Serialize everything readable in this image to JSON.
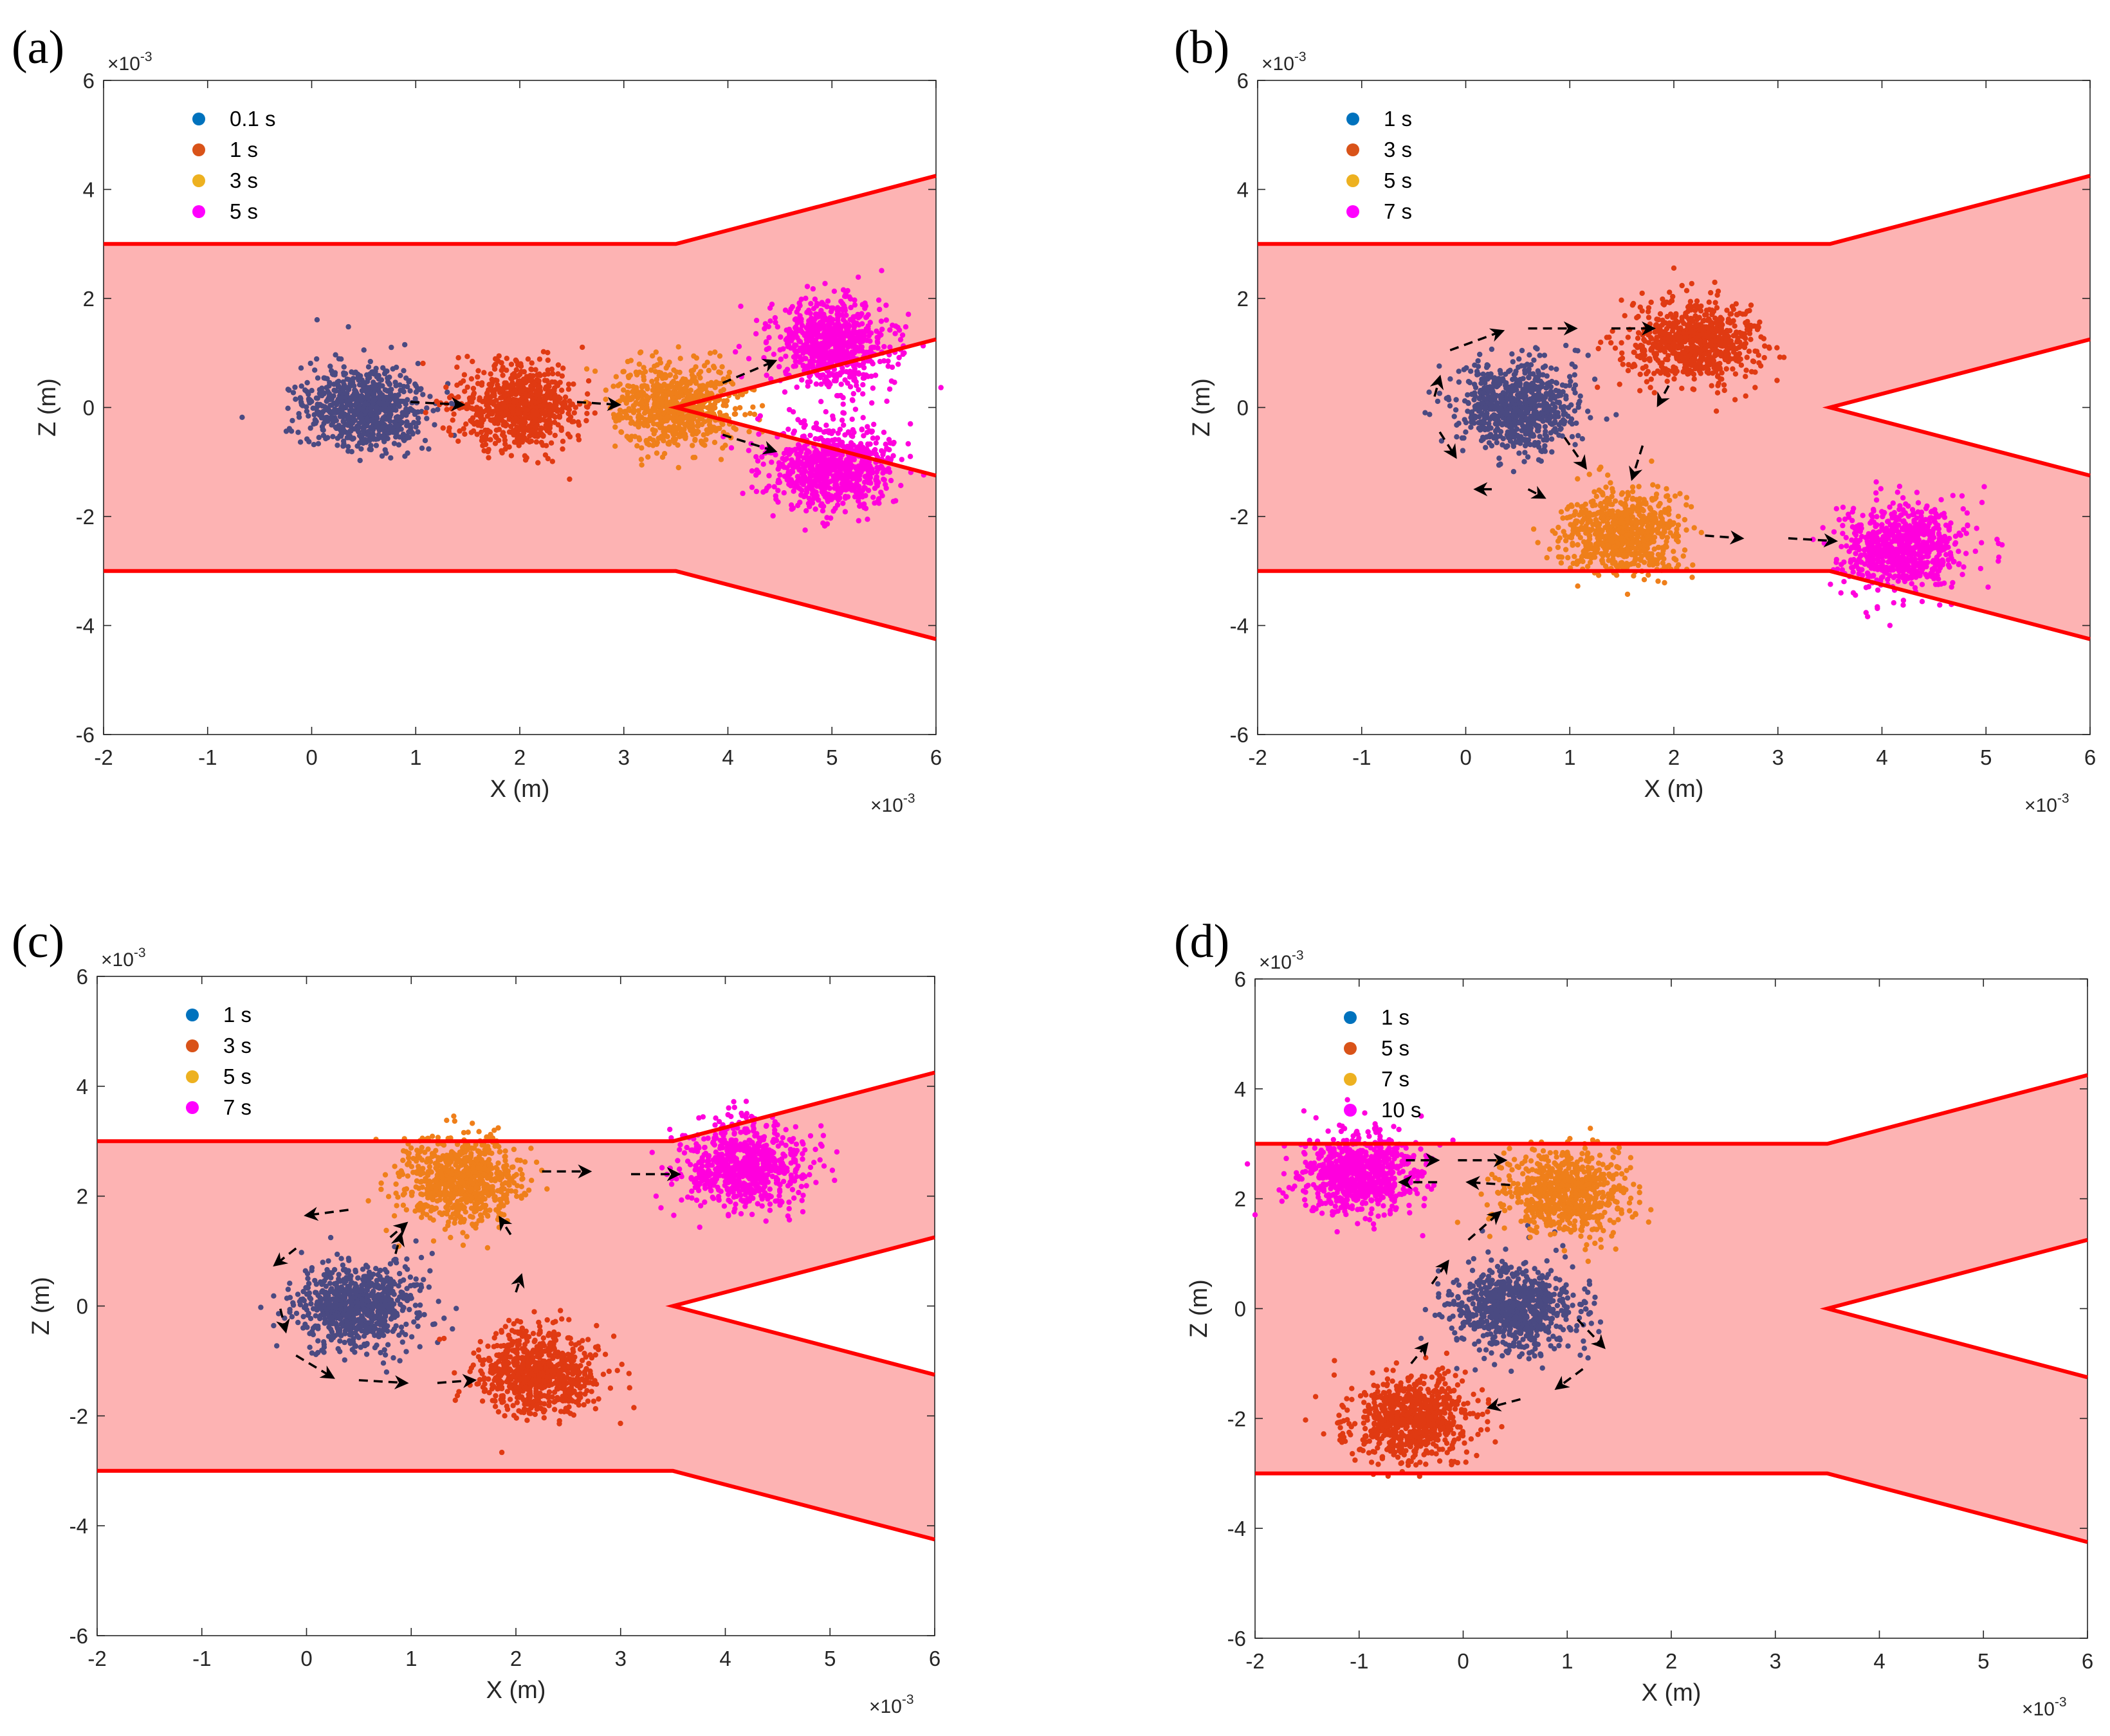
{
  "colors": {
    "channel_fill": "#fdb3b3",
    "channel_wall": "#ff0000",
    "arrow": "#000000",
    "cluster_initial": "#4a4a82",
    "cluster_2": "#e03a12",
    "cluster_3": "#ef7f1a",
    "cluster_4": "#ff00dd",
    "legend_1": "#0072bd",
    "legend_2": "#d95319",
    "legend_3": "#edb120",
    "legend_4": "#ff00ff"
  },
  "chart_data": [
    {
      "type": "scatter",
      "panel_label": "(a)",
      "xlabel": "X (m)",
      "ylabel": "Z (m)",
      "xlim": [
        -2,
        6
      ],
      "ylim": [
        -6,
        6
      ],
      "x_scale_exponent": "×10",
      "x_scale_power": "-3",
      "y_scale_exponent": "×10",
      "y_scale_power": "-3",
      "xticks": [
        "-2",
        "-1",
        "0",
        "1",
        "2",
        "3",
        "4",
        "5",
        "6"
      ],
      "yticks": [
        "-6",
        "-4",
        "-2",
        "0",
        "2",
        "4",
        "6"
      ],
      "legend_position": "top-left",
      "channel": {
        "outline_top": [
          [
            -2,
            3
          ],
          [
            3.5,
            3
          ],
          [
            6,
            4.25
          ]
        ],
        "outline_bottom": [
          [
            -2,
            -3
          ],
          [
            3.5,
            -3
          ],
          [
            6,
            -4.25
          ]
        ],
        "inner_branch": [
          [
            6,
            1.25
          ],
          [
            3.5,
            0
          ],
          [
            6,
            -1.25
          ]
        ]
      },
      "series": [
        {
          "name": "0.1 s",
          "color_key": "cluster_initial",
          "legend_color_key": "legend_1",
          "clusters": [
            {
              "x": 0.5,
              "z": 0.0
            }
          ]
        },
        {
          "name": "1 s",
          "color_key": "cluster_2",
          "legend_color_key": "legend_2",
          "clusters": [
            {
              "x": 2.0,
              "z": 0.0
            }
          ]
        },
        {
          "name": "3 s",
          "color_key": "cluster_3",
          "legend_color_key": "legend_3",
          "clusters": [
            {
              "x": 3.5,
              "z": 0.0
            }
          ]
        },
        {
          "name": "5 s",
          "color_key": "cluster_4",
          "legend_color_key": "legend_4",
          "clusters": [
            {
              "x": 5.0,
              "z": 1.2
            },
            {
              "x": 5.0,
              "z": -1.1
            }
          ]
        }
      ],
      "arrows": [
        {
          "from": [
            0.95,
            0.1
          ],
          "to": [
            1.45,
            0.05
          ]
        },
        {
          "from": [
            2.55,
            0.1
          ],
          "to": [
            2.95,
            0.05
          ]
        },
        {
          "from": [
            3.95,
            0.45
          ],
          "to": [
            4.45,
            0.85
          ]
        },
        {
          "from": [
            3.95,
            -0.5
          ],
          "to": [
            4.45,
            -0.8
          ]
        }
      ]
    },
    {
      "type": "scatter",
      "panel_label": "(b)",
      "xlabel": "X (m)",
      "ylabel": "Z (m)",
      "xlim": [
        -2,
        6
      ],
      "ylim": [
        -6,
        6
      ],
      "x_scale_exponent": "×10",
      "x_scale_power": "-3",
      "y_scale_exponent": "×10",
      "y_scale_power": "-3",
      "xticks": [
        "-2",
        "-1",
        "0",
        "1",
        "2",
        "3",
        "4",
        "5",
        "6"
      ],
      "yticks": [
        "-6",
        "-4",
        "-2",
        "0",
        "2",
        "4",
        "6"
      ],
      "legend_position": "top-left",
      "channel": {
        "outline_top": [
          [
            -2,
            3
          ],
          [
            3.5,
            3
          ],
          [
            6,
            4.25
          ]
        ],
        "outline_bottom": [
          [
            -2,
            -3
          ],
          [
            3.5,
            -3
          ],
          [
            6,
            -4.25
          ]
        ],
        "inner_branch": [
          [
            6,
            1.25
          ],
          [
            3.5,
            0
          ],
          [
            6,
            -1.25
          ]
        ]
      },
      "series": [
        {
          "name": "1 s",
          "color_key": "cluster_initial",
          "legend_color_key": "legend_1",
          "clusters": [
            {
              "x": 0.5,
              "z": 0.0
            }
          ]
        },
        {
          "name": "3 s",
          "color_key": "cluster_2",
          "legend_color_key": "legend_2",
          "clusters": [
            {
              "x": 2.2,
              "z": 1.2
            }
          ]
        },
        {
          "name": "5 s",
          "color_key": "cluster_3",
          "legend_color_key": "legend_3",
          "clusters": [
            {
              "x": 1.5,
              "z": -2.3
            }
          ]
        },
        {
          "name": "7 s",
          "color_key": "cluster_4",
          "legend_color_key": "legend_4",
          "clusters": [
            {
              "x": 4.2,
              "z": -2.55
            }
          ]
        }
      ],
      "arrows": [
        {
          "from": [
            -0.3,
            0.2
          ],
          "to": [
            -0.25,
            0.55
          ]
        },
        {
          "from": [
            -0.15,
            1.05
          ],
          "to": [
            0.35,
            1.4
          ]
        },
        {
          "from": [
            0.6,
            1.45
          ],
          "to": [
            1.05,
            1.45
          ]
        },
        {
          "from": [
            1.4,
            1.45
          ],
          "to": [
            1.8,
            1.45
          ]
        },
        {
          "from": [
            -0.25,
            -0.45
          ],
          "to": [
            -0.1,
            -0.9
          ]
        },
        {
          "from": [
            0.25,
            -1.5
          ],
          "to": [
            0.1,
            -1.5
          ]
        },
        {
          "from": [
            0.6,
            -1.5
          ],
          "to": [
            0.75,
            -1.65
          ]
        },
        {
          "from": [
            0.95,
            -0.55
          ],
          "to": [
            1.15,
            -1.1
          ]
        },
        {
          "from": [
            1.95,
            0.4
          ],
          "to": [
            1.85,
            0.05
          ]
        },
        {
          "from": [
            1.7,
            -0.7
          ],
          "to": [
            1.6,
            -1.3
          ]
        },
        {
          "from": [
            2.3,
            -2.35
          ],
          "to": [
            2.65,
            -2.4
          ]
        },
        {
          "from": [
            3.1,
            -2.4
          ],
          "to": [
            3.55,
            -2.45
          ]
        }
      ]
    },
    {
      "type": "scatter",
      "panel_label": "(c)",
      "xlabel": "X (m)",
      "ylabel": "Z (m)",
      "xlim": [
        -2,
        6
      ],
      "ylim": [
        -6,
        6
      ],
      "x_scale_exponent": "×10",
      "x_scale_power": "-3",
      "y_scale_exponent": "×10",
      "y_scale_power": "-3",
      "xticks": [
        "-2",
        "-1",
        "0",
        "1",
        "2",
        "3",
        "4",
        "5",
        "6"
      ],
      "yticks": [
        "-6",
        "-4",
        "-2",
        "0",
        "2",
        "4",
        "6"
      ],
      "legend_position": "top-left",
      "channel": {
        "outline_top": [
          [
            -2,
            3
          ],
          [
            3.5,
            3
          ],
          [
            6,
            4.25
          ]
        ],
        "outline_bottom": [
          [
            -2,
            -3
          ],
          [
            3.5,
            -3
          ],
          [
            6,
            -4.25
          ]
        ],
        "inner_branch": [
          [
            6,
            1.25
          ],
          [
            3.5,
            0
          ],
          [
            6,
            -1.25
          ]
        ]
      },
      "series": [
        {
          "name": "1 s",
          "color_key": "cluster_initial",
          "legend_color_key": "legend_1",
          "clusters": [
            {
              "x": 0.5,
              "z": 0.0
            }
          ]
        },
        {
          "name": "3 s",
          "color_key": "cluster_2",
          "legend_color_key": "legend_2",
          "clusters": [
            {
              "x": 2.2,
              "z": -1.2
            }
          ]
        },
        {
          "name": "5 s",
          "color_key": "cluster_3",
          "legend_color_key": "legend_3",
          "clusters": [
            {
              "x": 1.5,
              "z": 2.3
            }
          ]
        },
        {
          "name": "7 s",
          "color_key": "cluster_4",
          "legend_color_key": "legend_4",
          "clusters": [
            {
              "x": 4.2,
              "z": 2.55
            }
          ]
        }
      ],
      "arrows": [
        {
          "from": [
            -0.25,
            -0.05
          ],
          "to": [
            -0.2,
            -0.45
          ]
        },
        {
          "from": [
            -0.1,
            -0.9
          ],
          "to": [
            0.25,
            -1.3
          ]
        },
        {
          "from": [
            0.5,
            -1.35
          ],
          "to": [
            0.95,
            -1.4
          ]
        },
        {
          "from": [
            1.25,
            -1.4
          ],
          "to": [
            1.6,
            -1.35
          ]
        },
        {
          "from": [
            -0.1,
            1.05
          ],
          "to": [
            -0.3,
            0.75
          ]
        },
        {
          "from": [
            0.4,
            1.75
          ],
          "to": [
            0.0,
            1.65
          ]
        },
        {
          "from": [
            0.8,
            1.25
          ],
          "to": [
            0.95,
            1.5
          ]
        },
        {
          "from": [
            0.85,
            0.95
          ],
          "to": [
            0.9,
            1.3
          ]
        },
        {
          "from": [
            2.0,
            0.25
          ],
          "to": [
            2.05,
            0.55
          ]
        },
        {
          "from": [
            1.95,
            1.3
          ],
          "to": [
            1.85,
            1.6
          ]
        },
        {
          "from": [
            2.25,
            2.45
          ],
          "to": [
            2.7,
            2.45
          ]
        },
        {
          "from": [
            3.1,
            2.4
          ],
          "to": [
            3.55,
            2.4
          ]
        }
      ]
    },
    {
      "type": "scatter",
      "panel_label": "(d)",
      "xlabel": "X (m)",
      "ylabel": "Z (m)",
      "xlim": [
        -2,
        6
      ],
      "ylim": [
        -6,
        6
      ],
      "x_scale_exponent": "×10",
      "x_scale_power": "-3",
      "y_scale_exponent": "×10",
      "y_scale_power": "-3",
      "xticks": [
        "-2",
        "-1",
        "0",
        "1",
        "2",
        "3",
        "4",
        "5",
        "6"
      ],
      "yticks": [
        "-6",
        "-4",
        "-2",
        "0",
        "2",
        "4",
        "6"
      ],
      "legend_position": "top-left",
      "channel": {
        "outline_top": [
          [
            -2,
            3
          ],
          [
            3.5,
            3
          ],
          [
            6,
            4.25
          ]
        ],
        "outline_bottom": [
          [
            -2,
            -3
          ],
          [
            3.5,
            -3
          ],
          [
            6,
            -4.25
          ]
        ],
        "inner_branch": [
          [
            6,
            1.25
          ],
          [
            3.5,
            0
          ],
          [
            6,
            -1.25
          ]
        ]
      },
      "series": [
        {
          "name": "1 s",
          "color_key": "cluster_initial",
          "legend_color_key": "legend_1",
          "clusters": [
            {
              "x": 0.5,
              "z": 0.0
            }
          ]
        },
        {
          "name": "5 s",
          "color_key": "cluster_2",
          "legend_color_key": "legend_2",
          "clusters": [
            {
              "x": -0.5,
              "z": -2.0
            }
          ]
        },
        {
          "name": "7 s",
          "color_key": "cluster_3",
          "legend_color_key": "legend_3",
          "clusters": [
            {
              "x": 1.0,
              "z": 2.1
            }
          ]
        },
        {
          "name": "10 s",
          "color_key": "cluster_4",
          "legend_color_key": "legend_4",
          "clusters": [
            {
              "x": -1.0,
              "z": 2.5
            }
          ]
        }
      ],
      "arrows": [
        {
          "from": [
            1.1,
            -0.2
          ],
          "to": [
            1.35,
            -0.7
          ]
        },
        {
          "from": [
            1.15,
            -1.1
          ],
          "to": [
            0.9,
            -1.45
          ]
        },
        {
          "from": [
            0.55,
            -1.65
          ],
          "to": [
            0.25,
            -1.8
          ]
        },
        {
          "from": [
            -0.5,
            -1.0
          ],
          "to": [
            -0.35,
            -0.65
          ]
        },
        {
          "from": [
            -0.3,
            0.45
          ],
          "to": [
            -0.15,
            0.85
          ]
        },
        {
          "from": [
            0.05,
            1.25
          ],
          "to": [
            0.35,
            1.75
          ]
        },
        {
          "from": [
            -0.55,
            2.7
          ],
          "to": [
            -0.25,
            2.7
          ]
        },
        {
          "from": [
            -0.05,
            2.7
          ],
          "to": [
            0.4,
            2.7
          ]
        },
        {
          "from": [
            0.45,
            2.25
          ],
          "to": [
            0.05,
            2.3
          ]
        },
        {
          "from": [
            -0.25,
            2.3
          ],
          "to": [
            -0.6,
            2.3
          ]
        }
      ]
    }
  ]
}
